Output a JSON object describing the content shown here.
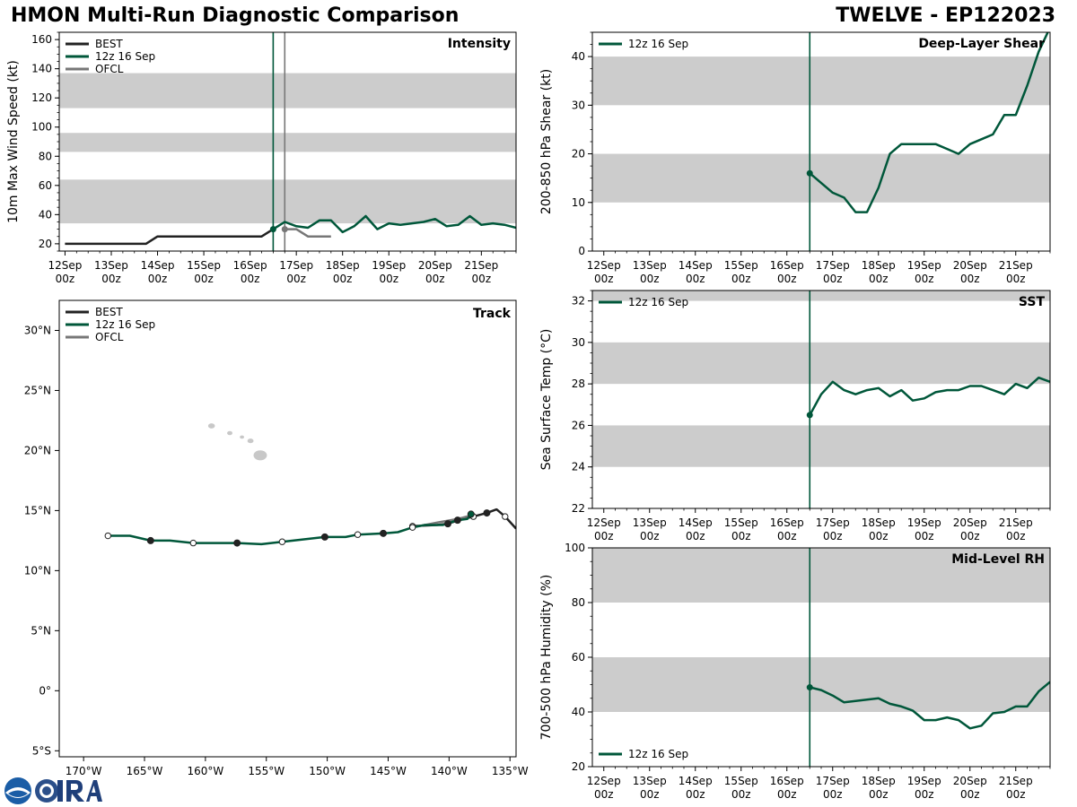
{
  "title_left": "HMON Multi-Run Diagnostic Comparison",
  "title_right": "TWELVE - EP122023",
  "colors": {
    "best": "#222222",
    "run": "#00573a",
    "ofcl": "#777777",
    "band": "#cccccc",
    "land": "#c8c8c8"
  },
  "time_ticks": [
    {
      "t": 0,
      "l1": "12Sep",
      "l2": "00z"
    },
    {
      "t": 1,
      "l1": "13Sep",
      "l2": "00z"
    },
    {
      "t": 2,
      "l1": "14Sep",
      "l2": "00z"
    },
    {
      "t": 3,
      "l1": "15Sep",
      "l2": "00z"
    },
    {
      "t": 4,
      "l1": "16Sep",
      "l2": "00z"
    },
    {
      "t": 5,
      "l1": "17Sep",
      "l2": "00z"
    },
    {
      "t": 6,
      "l1": "18Sep",
      "l2": "00z"
    },
    {
      "t": 7,
      "l1": "19Sep",
      "l2": "00z"
    },
    {
      "t": 8,
      "l1": "20Sep",
      "l2": "00z"
    },
    {
      "t": 9,
      "l1": "21Sep",
      "l2": "00z"
    }
  ],
  "chart_data": [
    {
      "id": "intensity",
      "type": "line",
      "title": "Intensity",
      "ylabel": "10m Max Wind Speed (kt)",
      "xlim": [
        -0.125,
        9.75
      ],
      "ylim": [
        15,
        165
      ],
      "yticks": [
        20,
        40,
        60,
        80,
        100,
        120,
        140,
        160
      ],
      "bands": [
        [
          34,
          64
        ],
        [
          83,
          96
        ],
        [
          113,
          137
        ]
      ],
      "vlines": [
        {
          "t": 4.5,
          "series": "run"
        },
        {
          "t": 4.75,
          "series": "ofcl"
        }
      ],
      "legend": [
        {
          "label": "BEST",
          "series": "best"
        },
        {
          "label": "12z 16 Sep",
          "series": "run"
        },
        {
          "label": "OFCL",
          "series": "ofcl"
        }
      ],
      "legend_position": "top-left",
      "series": [
        {
          "name": "BEST",
          "key": "best",
          "x": [
            0,
            0.25,
            0.5,
            0.75,
            1,
            1.25,
            1.5,
            1.75,
            2,
            2.25,
            2.5,
            2.75,
            3,
            3.25,
            3.5,
            3.75,
            4,
            4.25,
            4.5
          ],
          "y": [
            20,
            20,
            20,
            20,
            20,
            20,
            20,
            20,
            25,
            25,
            25,
            25,
            25,
            25,
            25,
            25,
            25,
            25,
            30
          ]
        },
        {
          "name": "12z 16 Sep",
          "key": "run",
          "start_marker": true,
          "x": [
            4.5,
            4.75,
            5,
            5.25,
            5.5,
            5.75,
            6,
            6.25,
            6.5,
            6.75,
            7,
            7.25,
            7.5,
            7.75,
            8,
            8.25,
            8.5,
            8.75,
            9,
            9.25,
            9.5,
            9.75
          ],
          "y": [
            30,
            35,
            32,
            31,
            36,
            36,
            28,
            32,
            39,
            30,
            34,
            33,
            34,
            35,
            37,
            32,
            33,
            39,
            33,
            34,
            33,
            31
          ]
        },
        {
          "name": "OFCL",
          "key": "ofcl",
          "start_marker": true,
          "x": [
            4.75,
            5,
            5.25,
            5.5,
            5.75
          ],
          "y": [
            30,
            30,
            25,
            25,
            25
          ]
        }
      ]
    },
    {
      "id": "shear",
      "type": "line",
      "title": "Deep-Layer Shear",
      "ylabel": "200-850 hPa Shear (kt)",
      "xlim": [
        -0.25,
        9.75
      ],
      "ylim": [
        0,
        45
      ],
      "yticks": [
        0,
        10,
        20,
        30,
        40
      ],
      "bands": [
        [
          10,
          20
        ],
        [
          30,
          40
        ]
      ],
      "vlines": [
        {
          "t": 4.5,
          "series": "run"
        }
      ],
      "legend": [
        {
          "label": "12z 16 Sep",
          "series": "run"
        }
      ],
      "legend_position": "top-left",
      "series": [
        {
          "name": "12z 16 Sep",
          "key": "run",
          "start_marker": true,
          "x": [
            4.5,
            4.75,
            5,
            5.25,
            5.5,
            5.75,
            6,
            6.25,
            6.5,
            6.75,
            7,
            7.25,
            7.5,
            7.75,
            8,
            8.25,
            8.5,
            8.75,
            9,
            9.25,
            9.5,
            9.75
          ],
          "y": [
            16,
            14,
            12,
            11,
            8,
            8,
            13,
            20,
            22,
            22,
            22,
            22,
            21,
            20,
            22,
            23,
            24,
            28,
            28,
            34,
            41,
            46
          ]
        }
      ]
    },
    {
      "id": "sst",
      "type": "line",
      "title": "SST",
      "ylabel": "Sea Surface Temp (°C)",
      "xlim": [
        -0.25,
        9.75
      ],
      "ylim": [
        22,
        32.5
      ],
      "yticks": [
        22,
        24,
        26,
        28,
        30,
        32
      ],
      "bands": [
        [
          24,
          26
        ],
        [
          28,
          30
        ],
        [
          32,
          33
        ]
      ],
      "vlines": [
        {
          "t": 4.5,
          "series": "run"
        }
      ],
      "legend": [
        {
          "label": "12z 16 Sep",
          "series": "run"
        }
      ],
      "legend_position": "top-left",
      "series": [
        {
          "name": "12z 16 Sep",
          "key": "run",
          "start_marker": true,
          "x": [
            4.5,
            4.75,
            5,
            5.25,
            5.5,
            5.75,
            6,
            6.25,
            6.5,
            6.75,
            7,
            7.25,
            7.5,
            7.75,
            8,
            8.25,
            8.5,
            8.75,
            9,
            9.25,
            9.5,
            9.75
          ],
          "y": [
            26.5,
            27.5,
            28.1,
            27.7,
            27.5,
            27.7,
            27.8,
            27.4,
            27.7,
            27.2,
            27.3,
            27.6,
            27.7,
            27.7,
            27.9,
            27.9,
            27.7,
            27.5,
            28.0,
            27.8,
            28.3,
            28.1
          ]
        }
      ]
    },
    {
      "id": "rh",
      "type": "line",
      "title": "Mid-Level RH",
      "ylabel": "700-500 hPa Humidity (%)",
      "xlim": [
        -0.25,
        9.75
      ],
      "ylim": [
        20,
        100
      ],
      "yticks": [
        20,
        40,
        60,
        80,
        100
      ],
      "bands": [
        [
          40,
          60
        ],
        [
          80,
          100
        ]
      ],
      "vlines": [
        {
          "t": 4.5,
          "series": "run"
        }
      ],
      "legend": [
        {
          "label": "12z 16 Sep",
          "series": "run"
        }
      ],
      "legend_position": "bottom-left",
      "series": [
        {
          "name": "12z 16 Sep",
          "key": "run",
          "start_marker": true,
          "x": [
            4.5,
            4.75,
            5,
            5.25,
            5.5,
            5.75,
            6,
            6.25,
            6.5,
            6.75,
            7,
            7.25,
            7.5,
            7.75,
            8,
            8.25,
            8.5,
            8.75,
            9,
            9.25,
            9.5,
            9.75
          ],
          "y": [
            49,
            48,
            46,
            43.5,
            44,
            44.5,
            45,
            43,
            42,
            40.5,
            37,
            37,
            38,
            37,
            34,
            35,
            39.5,
            40,
            42,
            42,
            47.5,
            51
          ]
        }
      ]
    },
    {
      "id": "track",
      "type": "line",
      "title": "Track",
      "xlim": [
        -172,
        -134.5
      ],
      "ylim": [
        -5.5,
        32.5
      ],
      "xticks": [
        {
          "v": -170,
          "label": "170°W"
        },
        {
          "v": -165,
          "label": "165°W"
        },
        {
          "v": -160,
          "label": "160°W"
        },
        {
          "v": -155,
          "label": "155°W"
        },
        {
          "v": -150,
          "label": "150°W"
        },
        {
          "v": -145,
          "label": "145°W"
        },
        {
          "v": -140,
          "label": "140°W"
        },
        {
          "v": -135,
          "label": "135°W"
        }
      ],
      "yticks": [
        {
          "v": -5,
          "label": "5°S"
        },
        {
          "v": 0,
          "label": "0°"
        },
        {
          "v": 5,
          "label": "5°N"
        },
        {
          "v": 10,
          "label": "10°N"
        },
        {
          "v": 15,
          "label": "15°N"
        },
        {
          "v": 20,
          "label": "20°N"
        },
        {
          "v": 25,
          "label": "25°N"
        },
        {
          "v": 30,
          "label": "30°N"
        }
      ],
      "legend": [
        {
          "label": "BEST",
          "series": "best"
        },
        {
          "label": "12z 16 Sep",
          "series": "run"
        },
        {
          "label": "OFCL",
          "series": "ofcl"
        }
      ],
      "legend_position": "top-left",
      "series": [
        {
          "name": "BEST",
          "key": "best",
          "lon": [
            -134.5,
            -135.4,
            -136.1,
            -136.9,
            -138.0,
            -139.2,
            -140.1,
            -141.0,
            -143.0
          ],
          "lat": [
            13.5,
            14.5,
            15.1,
            14.8,
            14.5,
            14.2,
            13.9,
            13.8,
            13.7
          ],
          "marker_idx": [
            1,
            3,
            4,
            6,
            8
          ],
          "filled_idx": [
            3,
            6
          ]
        },
        {
          "name": "OFCL",
          "key": "ofcl",
          "lon": [
            -138.2,
            -139.3,
            -141.0,
            -143.0
          ],
          "lat": [
            14.6,
            14.3,
            14.0,
            13.6
          ],
          "marker_idx": [],
          "filled_idx": []
        },
        {
          "name": "12z 16 Sep",
          "key": "run",
          "lon": [
            -138.2,
            -138.5,
            -139.3,
            -140.5,
            -142.0,
            -143.0,
            -144.2,
            -145.4,
            -147.5,
            -148.5,
            -150.2,
            -152.0,
            -153.7,
            -155.4,
            -157.4,
            -159.0,
            -161.0,
            -162.9,
            -164.5,
            -166.2,
            -168.0
          ],
          "lat": [
            14.7,
            14.3,
            14.2,
            13.8,
            13.8,
            13.6,
            13.2,
            13.1,
            13.0,
            12.8,
            12.8,
            12.6,
            12.4,
            12.2,
            12.3,
            12.3,
            12.3,
            12.5,
            12.5,
            12.9,
            12.9
          ],
          "marker_idx": [
            0,
            2,
            5,
            7,
            8,
            10,
            12,
            14,
            16,
            18,
            20
          ],
          "filled_idx": [
            0,
            2,
            7,
            10,
            14,
            18
          ]
        }
      ],
      "islands": [
        {
          "name": "Kauai",
          "lon": -159.5,
          "lat": 22.05,
          "r": 0.28
        },
        {
          "name": "Oahu",
          "lon": -158.0,
          "lat": 21.45,
          "r": 0.22
        },
        {
          "name": "Molokai",
          "lon": -157.0,
          "lat": 21.12,
          "r": 0.18
        },
        {
          "name": "Maui",
          "lon": -156.3,
          "lat": 20.8,
          "r": 0.25
        },
        {
          "name": "Hawaii",
          "lon": -155.5,
          "lat": 19.6,
          "r": 0.55
        }
      ]
    }
  ]
}
